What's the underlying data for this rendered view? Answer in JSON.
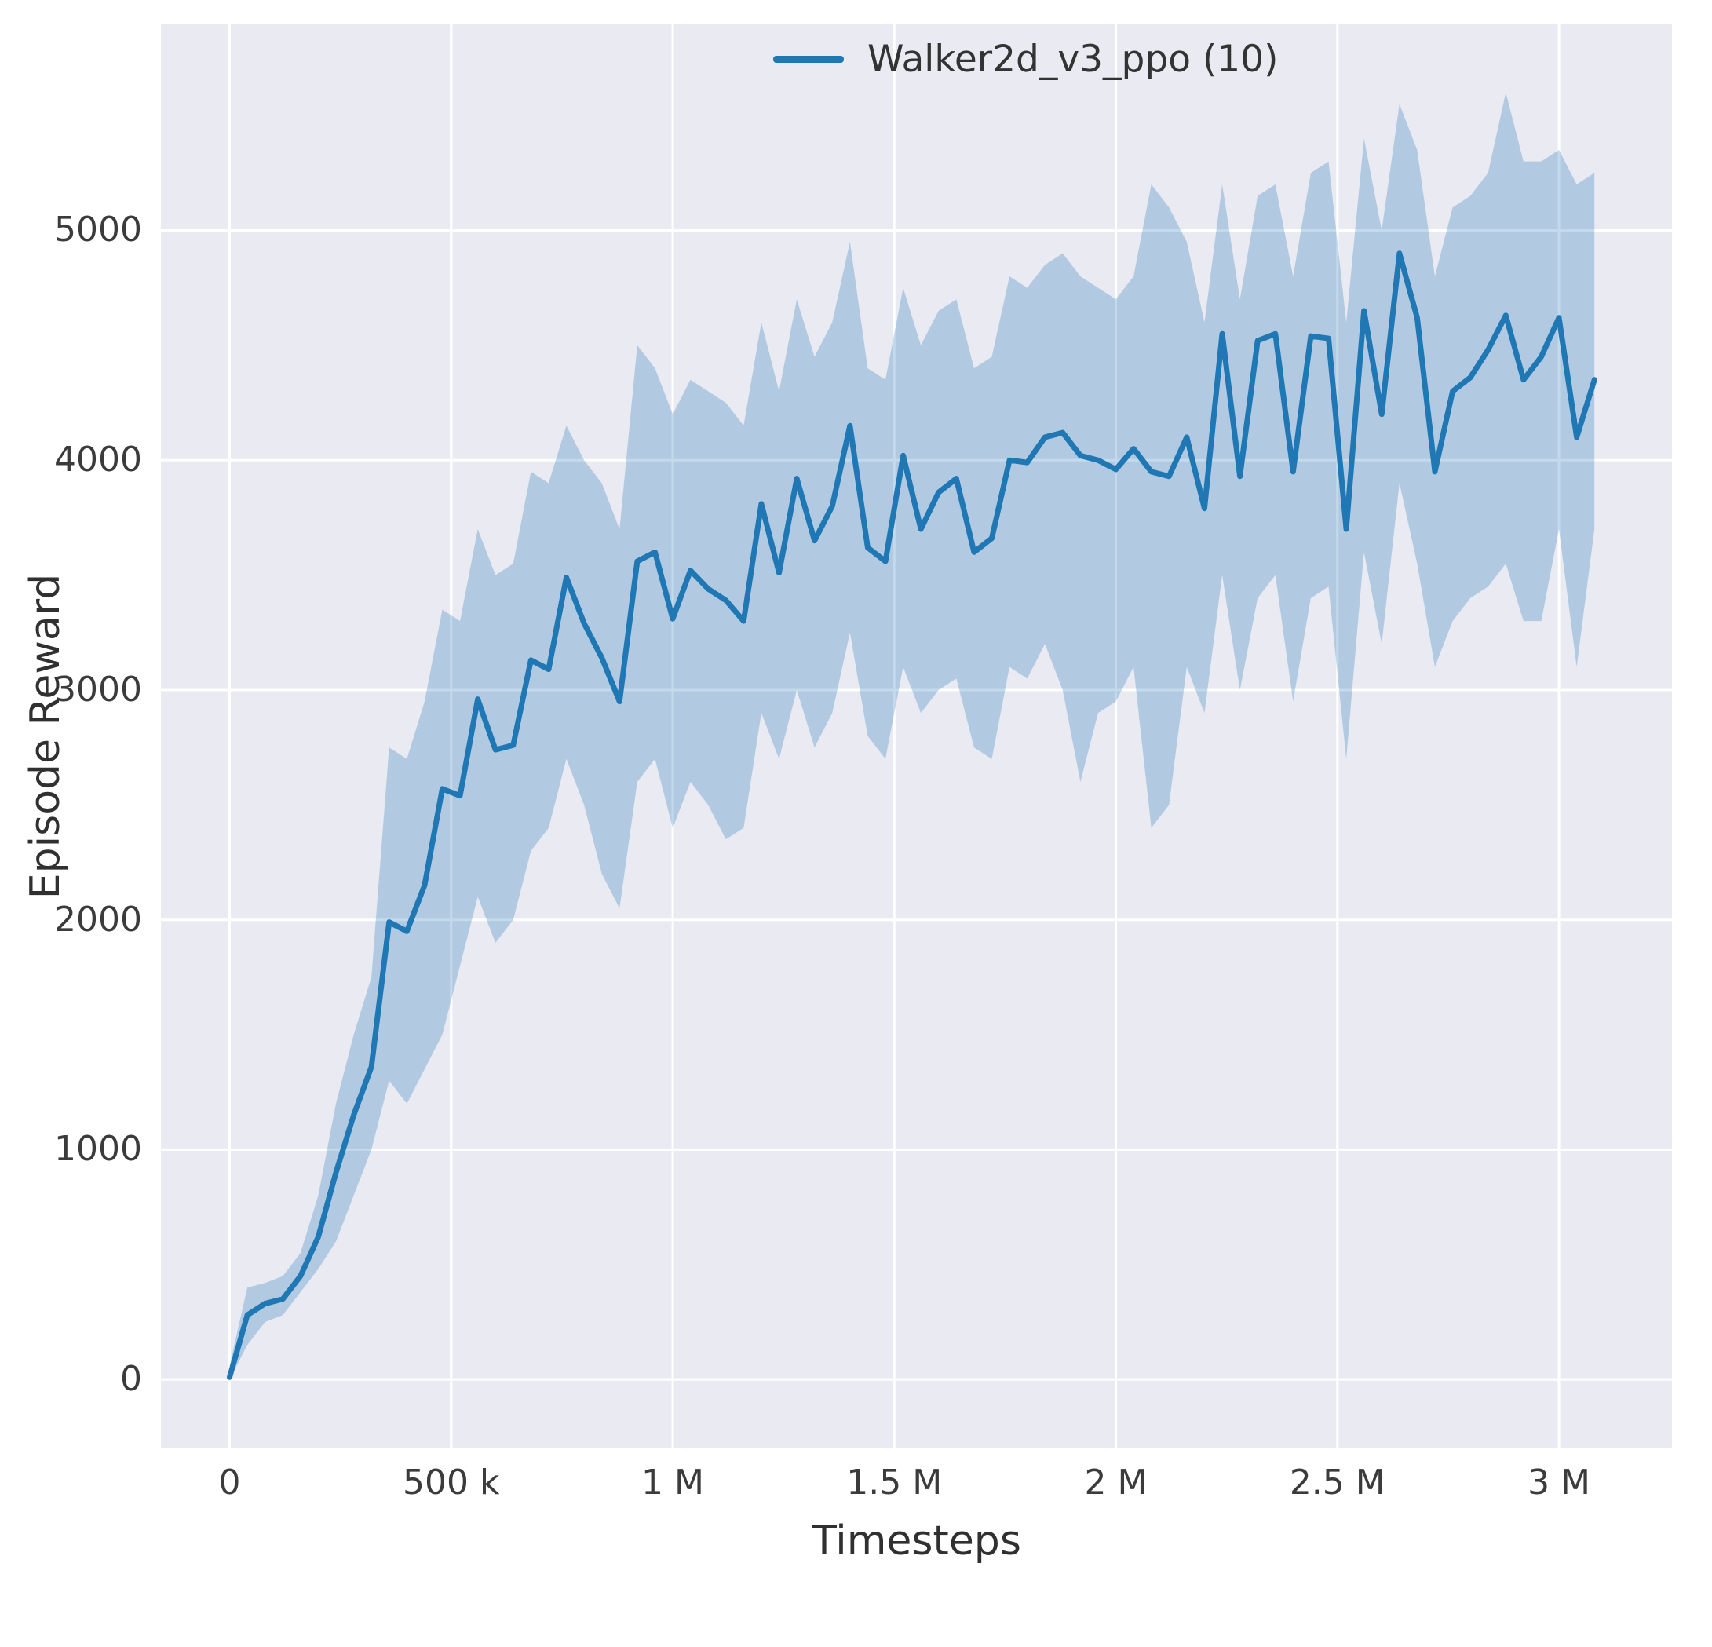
{
  "figure": {
    "background": "#ffffff",
    "axes_background": "#eaeaf2",
    "grid_color": "#ffffff",
    "text_color": "#3b3b3b"
  },
  "chart_data": {
    "type": "line",
    "title": "",
    "xlabel": "Timesteps",
    "ylabel": "Episode Reward",
    "grid": true,
    "legend": {
      "label": "Walker2d_v3_ppo (10)",
      "position": "upper-center-right"
    },
    "xlim": [
      -155000,
      3255000
    ],
    "ylim": [
      -300,
      5900
    ],
    "x_ticks": [
      {
        "value": 0,
        "label": "0"
      },
      {
        "value": 500000,
        "label": "500 k"
      },
      {
        "value": 1000000,
        "label": "1 M"
      },
      {
        "value": 1500000,
        "label": "1.5 M"
      },
      {
        "value": 2000000,
        "label": "2 M"
      },
      {
        "value": 2500000,
        "label": "2.5 M"
      },
      {
        "value": 3000000,
        "label": "3 M"
      }
    ],
    "y_ticks": [
      {
        "value": 0,
        "label": "0"
      },
      {
        "value": 1000,
        "label": "1000"
      },
      {
        "value": 2000,
        "label": "2000"
      },
      {
        "value": 3000,
        "label": "3000"
      },
      {
        "value": 4000,
        "label": "4000"
      },
      {
        "value": 5000,
        "label": "5000"
      }
    ],
    "series": [
      {
        "name": "Walker2d_v3_ppo (10)",
        "color": "#1f77b4",
        "band_alpha": 0.27,
        "x": [
          0,
          40000,
          80000,
          120000,
          160000,
          200000,
          240000,
          280000,
          320000,
          360000,
          400000,
          440000,
          480000,
          520000,
          560000,
          600000,
          640000,
          680000,
          720000,
          760000,
          800000,
          840000,
          880000,
          920000,
          960000,
          1000000,
          1040000,
          1080000,
          1120000,
          1160000,
          1200000,
          1240000,
          1280000,
          1320000,
          1360000,
          1400000,
          1440000,
          1480000,
          1520000,
          1560000,
          1600000,
          1640000,
          1680000,
          1720000,
          1760000,
          1800000,
          1840000,
          1880000,
          1920000,
          1960000,
          2000000,
          2040000,
          2080000,
          2120000,
          2160000,
          2200000,
          2240000,
          2280000,
          2320000,
          2360000,
          2400000,
          2440000,
          2480000,
          2520000,
          2560000,
          2600000,
          2640000,
          2680000,
          2720000,
          2760000,
          2800000,
          2840000,
          2880000,
          2920000,
          2960000,
          3000000,
          3040000,
          3080000
        ],
        "mean": [
          10,
          280,
          330,
          350,
          450,
          620,
          900,
          1150,
          1360,
          1990,
          1950,
          2150,
          2570,
          2540,
          2960,
          2740,
          2760,
          3130,
          3090,
          3490,
          3290,
          3140,
          2950,
          3560,
          3600,
          3310,
          3520,
          3440,
          3390,
          3300,
          3810,
          3510,
          3920,
          3650,
          3800,
          4150,
          3620,
          3560,
          4020,
          3700,
          3860,
          3920,
          3600,
          3660,
          4000,
          3990,
          4100,
          4120,
          4020,
          4000,
          3960,
          4050,
          3950,
          3930,
          4100,
          3790,
          4550,
          3930,
          4520,
          4550,
          3950,
          4540,
          4530,
          3700,
          4650,
          4200,
          4900,
          4620,
          3950,
          4300,
          4360,
          4480,
          4630,
          4350,
          4450,
          4620,
          4100,
          4350
        ],
        "low": [
          0,
          150,
          250,
          280,
          380,
          480,
          600,
          800,
          1000,
          1300,
          1200,
          1350,
          1500,
          1800,
          2100,
          1900,
          2000,
          2300,
          2400,
          2700,
          2500,
          2200,
          2050,
          2600,
          2700,
          2400,
          2600,
          2500,
          2350,
          2400,
          2900,
          2700,
          3000,
          2750,
          2900,
          3250,
          2800,
          2700,
          3100,
          2900,
          3000,
          3050,
          2750,
          2700,
          3100,
          3050,
          3200,
          3000,
          2600,
          2900,
          2950,
          3100,
          2400,
          2500,
          3100,
          2900,
          3500,
          3000,
          3400,
          3500,
          2950,
          3400,
          3450,
          2700,
          3600,
          3200,
          3900,
          3550,
          3100,
          3300,
          3400,
          3450,
          3550,
          3300,
          3300,
          3700,
          3100,
          3700
        ],
        "high": [
          60,
          400,
          420,
          450,
          550,
          800,
          1200,
          1500,
          1750,
          2750,
          2700,
          2950,
          3350,
          3300,
          3700,
          3500,
          3550,
          3950,
          3900,
          4150,
          4000,
          3900,
          3700,
          4500,
          4400,
          4200,
          4350,
          4300,
          4250,
          4150,
          4600,
          4300,
          4700,
          4450,
          4600,
          4950,
          4400,
          4350,
          4750,
          4500,
          4650,
          4700,
          4400,
          4450,
          4800,
          4750,
          4850,
          4900,
          4800,
          4750,
          4700,
          4800,
          5200,
          5100,
          4950,
          4600,
          5200,
          4700,
          5150,
          5200,
          4800,
          5250,
          5300,
          4600,
          5400,
          5000,
          5550,
          5350,
          4800,
          5100,
          5150,
          5250,
          5600,
          5300,
          5300,
          5350,
          5200,
          5250
        ]
      }
    ]
  }
}
